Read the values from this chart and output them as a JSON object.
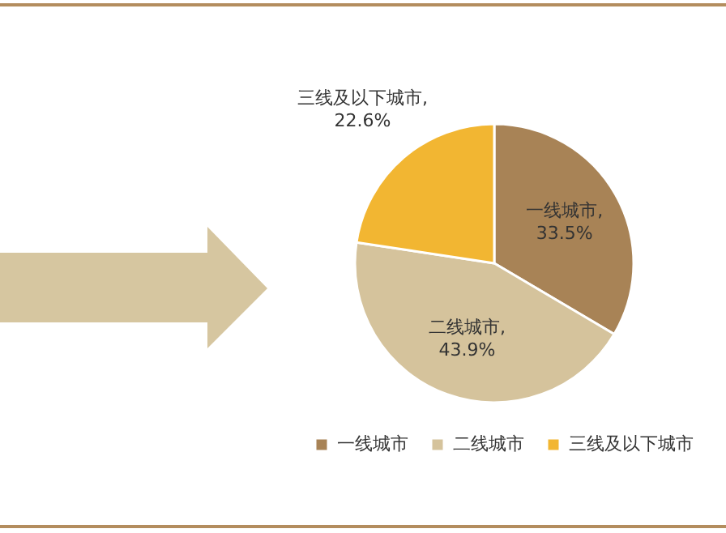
{
  "chart_data": {
    "type": "pie",
    "categories": [
      "一线城市",
      "二线城市",
      "三线及以下城市"
    ],
    "values": [
      33.5,
      43.9,
      22.6
    ],
    "colors": [
      "#a88356",
      "#d5c39c",
      "#f2b632"
    ],
    "value_labels": [
      "一线城市,\n33.5%",
      "二线城市,\n43.9%",
      "三线及以下城市,\n22.6%"
    ],
    "legend": "bottom right"
  }
}
